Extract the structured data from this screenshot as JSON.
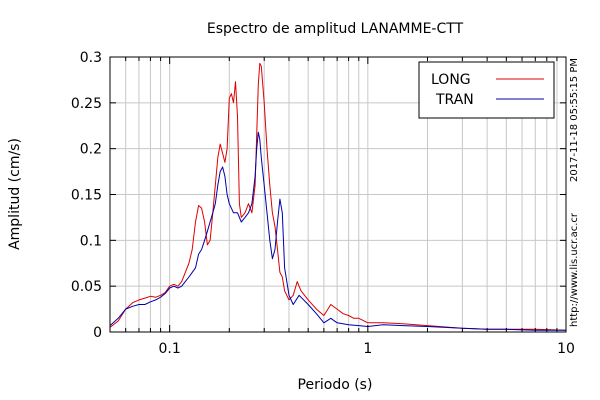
{
  "chart_data": {
    "type": "line",
    "title": "Espectro de amplitud LANAMME-CTT",
    "xlabel": "Periodo (s)",
    "ylabel": "Amplitud (cm/s)",
    "x_scale": "log",
    "xlim": [
      0.05,
      10
    ],
    "ylim": [
      0,
      0.3
    ],
    "x_tick_labels": [
      "0.1",
      "1",
      "10"
    ],
    "y_tick_labels": [
      "0",
      "0.05",
      "0.1",
      "0.15",
      "0.2",
      "0.25",
      "0.3"
    ],
    "grid": true,
    "legend_position": "top-right",
    "side_labels": [
      "2017-11-18 05:55:15 PM",
      "http://www.lis.ucr.ac.cr"
    ],
    "series": [
      {
        "name": "LONG",
        "color": "#dd0000",
        "points": [
          [
            0.05,
            0.005
          ],
          [
            0.055,
            0.012
          ],
          [
            0.06,
            0.025
          ],
          [
            0.065,
            0.032
          ],
          [
            0.07,
            0.035
          ],
          [
            0.075,
            0.037
          ],
          [
            0.08,
            0.039
          ],
          [
            0.085,
            0.038
          ],
          [
            0.09,
            0.04
          ],
          [
            0.095,
            0.043
          ],
          [
            0.1,
            0.05
          ],
          [
            0.105,
            0.052
          ],
          [
            0.11,
            0.05
          ],
          [
            0.115,
            0.055
          ],
          [
            0.12,
            0.065
          ],
          [
            0.125,
            0.075
          ],
          [
            0.13,
            0.09
          ],
          [
            0.135,
            0.12
          ],
          [
            0.14,
            0.138
          ],
          [
            0.145,
            0.135
          ],
          [
            0.15,
            0.12
          ],
          [
            0.155,
            0.095
          ],
          [
            0.16,
            0.1
          ],
          [
            0.165,
            0.13
          ],
          [
            0.17,
            0.16
          ],
          [
            0.175,
            0.19
          ],
          [
            0.18,
            0.205
          ],
          [
            0.185,
            0.195
          ],
          [
            0.19,
            0.185
          ],
          [
            0.195,
            0.2
          ],
          [
            0.2,
            0.255
          ],
          [
            0.205,
            0.26
          ],
          [
            0.21,
            0.25
          ],
          [
            0.215,
            0.273
          ],
          [
            0.22,
            0.235
          ],
          [
            0.225,
            0.14
          ],
          [
            0.23,
            0.125
          ],
          [
            0.24,
            0.13
          ],
          [
            0.25,
            0.14
          ],
          [
            0.26,
            0.13
          ],
          [
            0.27,
            0.16
          ],
          [
            0.28,
            0.27
          ],
          [
            0.285,
            0.293
          ],
          [
            0.29,
            0.29
          ],
          [
            0.3,
            0.25
          ],
          [
            0.31,
            0.2
          ],
          [
            0.32,
            0.16
          ],
          [
            0.33,
            0.13
          ],
          [
            0.34,
            0.115
          ],
          [
            0.35,
            0.09
          ],
          [
            0.36,
            0.065
          ],
          [
            0.37,
            0.06
          ],
          [
            0.38,
            0.045
          ],
          [
            0.4,
            0.035
          ],
          [
            0.42,
            0.04
          ],
          [
            0.44,
            0.055
          ],
          [
            0.46,
            0.045
          ],
          [
            0.5,
            0.035
          ],
          [
            0.55,
            0.025
          ],
          [
            0.6,
            0.018
          ],
          [
            0.65,
            0.03
          ],
          [
            0.7,
            0.025
          ],
          [
            0.75,
            0.02
          ],
          [
            0.8,
            0.018
          ],
          [
            0.85,
            0.015
          ],
          [
            0.9,
            0.015
          ],
          [
            1.0,
            0.01
          ],
          [
            1.2,
            0.01
          ],
          [
            1.5,
            0.009
          ],
          [
            2.0,
            0.007
          ],
          [
            3.0,
            0.004
          ],
          [
            4.0,
            0.003
          ],
          [
            5.0,
            0.003
          ],
          [
            7.0,
            0.003
          ],
          [
            10.0,
            0.002
          ]
        ]
      },
      {
        "name": "TRAN",
        "color": "#0000aa",
        "points": [
          [
            0.05,
            0.007
          ],
          [
            0.055,
            0.015
          ],
          [
            0.06,
            0.025
          ],
          [
            0.065,
            0.028
          ],
          [
            0.07,
            0.03
          ],
          [
            0.075,
            0.03
          ],
          [
            0.08,
            0.033
          ],
          [
            0.085,
            0.035
          ],
          [
            0.09,
            0.038
          ],
          [
            0.095,
            0.042
          ],
          [
            0.1,
            0.048
          ],
          [
            0.105,
            0.05
          ],
          [
            0.11,
            0.048
          ],
          [
            0.115,
            0.05
          ],
          [
            0.12,
            0.055
          ],
          [
            0.125,
            0.06
          ],
          [
            0.13,
            0.065
          ],
          [
            0.135,
            0.07
          ],
          [
            0.14,
            0.085
          ],
          [
            0.145,
            0.09
          ],
          [
            0.15,
            0.1
          ],
          [
            0.155,
            0.11
          ],
          [
            0.16,
            0.12
          ],
          [
            0.165,
            0.13
          ],
          [
            0.17,
            0.14
          ],
          [
            0.175,
            0.16
          ],
          [
            0.18,
            0.175
          ],
          [
            0.185,
            0.18
          ],
          [
            0.19,
            0.17
          ],
          [
            0.195,
            0.15
          ],
          [
            0.2,
            0.14
          ],
          [
            0.21,
            0.13
          ],
          [
            0.22,
            0.13
          ],
          [
            0.23,
            0.12
          ],
          [
            0.24,
            0.125
          ],
          [
            0.25,
            0.13
          ],
          [
            0.26,
            0.14
          ],
          [
            0.27,
            0.17
          ],
          [
            0.275,
            0.2
          ],
          [
            0.28,
            0.218
          ],
          [
            0.285,
            0.21
          ],
          [
            0.29,
            0.19
          ],
          [
            0.3,
            0.16
          ],
          [
            0.31,
            0.13
          ],
          [
            0.32,
            0.1
          ],
          [
            0.33,
            0.08
          ],
          [
            0.34,
            0.09
          ],
          [
            0.35,
            0.12
          ],
          [
            0.36,
            0.145
          ],
          [
            0.37,
            0.13
          ],
          [
            0.38,
            0.07
          ],
          [
            0.4,
            0.04
          ],
          [
            0.42,
            0.03
          ],
          [
            0.45,
            0.04
          ],
          [
            0.5,
            0.03
          ],
          [
            0.55,
            0.02
          ],
          [
            0.6,
            0.01
          ],
          [
            0.65,
            0.015
          ],
          [
            0.7,
            0.01
          ],
          [
            0.8,
            0.008
          ],
          [
            0.9,
            0.007
          ],
          [
            1.0,
            0.006
          ],
          [
            1.2,
            0.008
          ],
          [
            1.5,
            0.007
          ],
          [
            2.0,
            0.006
          ],
          [
            3.0,
            0.004
          ],
          [
            4.0,
            0.003
          ],
          [
            5.0,
            0.003
          ],
          [
            7.0,
            0.002
          ],
          [
            10.0,
            0.002
          ]
        ]
      }
    ]
  }
}
